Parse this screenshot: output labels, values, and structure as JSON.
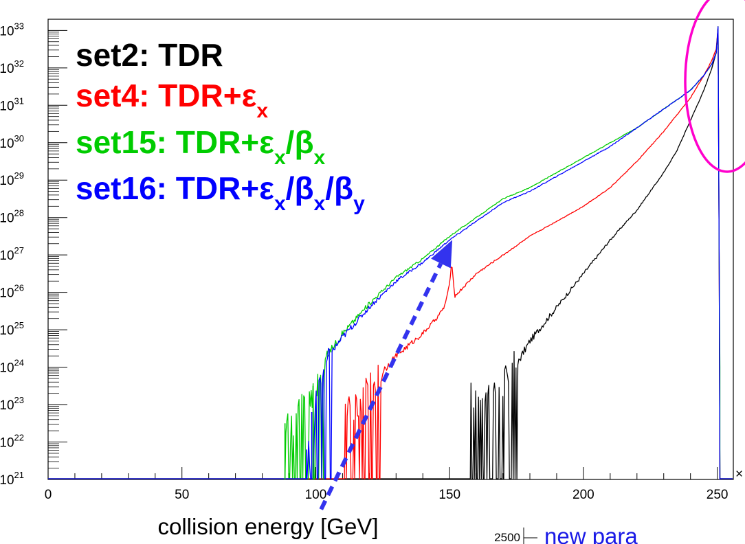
{
  "chart_data": {
    "type": "line",
    "xlabel": "collision energy [GeV]",
    "ylabel": "",
    "xlim": [
      0,
      256
    ],
    "ylim_log10": [
      21,
      33.3
    ],
    "yscale": "log",
    "x_ticks": [
      "0",
      "50",
      "100",
      "150",
      "200",
      "250"
    ],
    "y_ticks": [
      {
        "base": "10",
        "exp": "33",
        "log": 33
      },
      {
        "base": "10",
        "exp": "32",
        "log": 32
      },
      {
        "base": "10",
        "exp": "31",
        "log": 31
      },
      {
        "base": "10",
        "exp": "30",
        "log": 30
      },
      {
        "base": "10",
        "exp": "29",
        "log": 29
      },
      {
        "base": "10",
        "exp": "28",
        "log": 28
      },
      {
        "base": "10",
        "exp": "27",
        "log": 27
      },
      {
        "base": "10",
        "exp": "26",
        "log": 26
      },
      {
        "base": "10",
        "exp": "25",
        "log": 25
      },
      {
        "base": "10",
        "exp": "24",
        "log": 24
      },
      {
        "base": "10",
        "exp": "23",
        "log": 23
      },
      {
        "base": "10",
        "exp": "22",
        "log": 22
      },
      {
        "base": "10",
        "exp": "21",
        "log": 21
      }
    ],
    "axis_corner_mark": "×",
    "legend": [
      {
        "prefix": "set2:   TDR",
        "parts": [],
        "color": "#000000"
      },
      {
        "prefix": "set4:   TDR+ε",
        "parts": [
          {
            "sub": "x",
            "after": ""
          }
        ],
        "color": "#ff0000"
      },
      {
        "prefix": "set15: TDR+ε",
        "parts": [
          {
            "sub": "x",
            "after": "/β"
          },
          {
            "sub": "x",
            "after": ""
          }
        ],
        "color": "#00cc00"
      },
      {
        "prefix": "set16: TDR+ε",
        "parts": [
          {
            "sub": "x",
            "after": "/β"
          },
          {
            "sub": "x",
            "after": "/β"
          },
          {
            "sub": "y",
            "after": ""
          }
        ],
        "color": "#0000ff"
      }
    ],
    "series": [
      {
        "name": "set2: TDR",
        "color": "#000000",
        "onset": 158,
        "noise_end": 176,
        "x": [
          158,
          170,
          176,
          180,
          190,
          200,
          210,
          220,
          230,
          235,
          240,
          245,
          248,
          249.6,
          250.3,
          250.7,
          251
        ],
        "log10_y": [
          23.2,
          23.6,
          24.2,
          24.7,
          25.6,
          26.5,
          27.4,
          28.2,
          29.2,
          29.8,
          30.6,
          31.4,
          32.0,
          32.4,
          33.1,
          27.0,
          21.0
        ]
      },
      {
        "name": "set4: TDR+εx",
        "color": "#ff0000",
        "onset": 110,
        "noise_end": 125,
        "x": [
          110,
          120,
          125,
          130,
          140,
          145,
          148,
          150,
          150.7,
          152,
          160,
          170,
          180,
          190,
          200,
          210,
          220,
          230,
          240,
          245,
          248,
          249.6,
          250.3,
          250.7,
          251
        ],
        "log10_y": [
          22.6,
          23.4,
          23.9,
          24.3,
          24.9,
          25.3,
          25.6,
          26.2,
          26.8,
          25.9,
          26.5,
          27.0,
          27.5,
          27.9,
          28.3,
          28.8,
          29.5,
          30.3,
          31.2,
          31.8,
          32.2,
          32.5,
          33.1,
          27.0,
          21.0
        ]
      },
      {
        "name": "set15: TDR+εx/βx",
        "color": "#00cc00",
        "onset": 88.5,
        "noise_end": 104,
        "x": [
          88.5,
          100,
          104,
          110,
          120,
          130,
          140,
          150,
          160,
          170,
          180,
          190,
          200,
          210,
          220,
          230,
          240,
          245,
          248,
          249.6,
          250.3,
          250.7,
          251
        ],
        "log10_y": [
          22.2,
          23.5,
          24.3,
          24.9,
          25.7,
          26.4,
          26.9,
          27.5,
          28.0,
          28.5,
          28.8,
          29.2,
          29.6,
          30.0,
          30.4,
          30.9,
          31.4,
          31.8,
          32.1,
          32.4,
          33.1,
          27.0,
          24.0
        ]
      },
      {
        "name": "set16: TDR+εx/βx/βy",
        "color": "#0000ff",
        "onset": 97,
        "noise_end": 106,
        "x": [
          97,
          102,
          106,
          110,
          120,
          130,
          140,
          150,
          160,
          170,
          180,
          190,
          200,
          210,
          220,
          230,
          240,
          245,
          248,
          249.6,
          250.3,
          250.7,
          251
        ],
        "log10_y": [
          21.5,
          23.8,
          24.4,
          24.8,
          25.6,
          26.3,
          26.8,
          27.4,
          27.9,
          28.4,
          28.7,
          29.1,
          29.5,
          29.9,
          30.4,
          30.9,
          31.4,
          31.8,
          32.1,
          32.4,
          33.1,
          27.0,
          21.0
        ]
      }
    ],
    "spikes": [
      {
        "x": 88.5,
        "log10_y": 22.5,
        "color": "#00cc00"
      },
      {
        "x": 99,
        "log10_y": 23.5,
        "color": "#00cc00"
      },
      {
        "x": 96.5,
        "log10_y": 21.8,
        "color": "#0000ff"
      },
      {
        "x": 98.5,
        "log10_y": 22.8,
        "color": "#0000ff"
      }
    ],
    "annotations": {
      "arrow": {
        "from": [
          102,
          20.2
        ],
        "to": [
          151,
          27.4
        ],
        "color": "#3333ee"
      },
      "ellipse_color": "#ff00cc"
    },
    "inset": {
      "tick_label": "2500",
      "title": "new para"
    }
  }
}
